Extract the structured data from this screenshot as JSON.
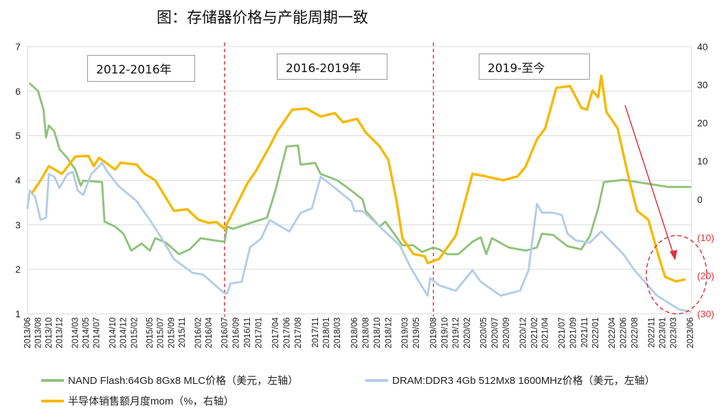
{
  "title": "图：存储器价格与产能周期一致",
  "chart_data": {
    "type": "line",
    "title": "图：存储器价格与产能周期一致",
    "x_ticks": [
      "2013/06",
      "2013/08",
      "2013/10",
      "2013/12",
      "2014/03",
      "2014/05",
      "2014/07",
      "2014/10",
      "2014/12",
      "2015/02",
      "2015/05",
      "2015/07",
      "2015/09",
      "2015/11",
      "2016/02",
      "2016/04",
      "2016/07",
      "2016/09",
      "2016/11",
      "2017/01",
      "2017/04",
      "2017/06",
      "2017/08",
      "2017/11",
      "2018/01",
      "2018/03",
      "2018/06",
      "2018/08",
      "2018/10",
      "2018/12",
      "2019/03",
      "2019/05",
      "2019/08",
      "2019/10",
      "2019/12",
      "2020/02",
      "2020/05",
      "2020/07",
      "2020/09",
      "2020/12",
      "2021/02",
      "2021/04",
      "2021/07",
      "2021/09",
      "2021/11",
      "2022/01",
      "2022/04",
      "2022/06",
      "2022/08",
      "2022/11",
      "2023/01",
      "2023/03",
      "2023/06"
    ],
    "y_left": {
      "ylim": [
        1,
        7
      ],
      "ticks": [
        "1",
        "2",
        "3",
        "4",
        "5",
        "6",
        "7"
      ]
    },
    "y_right": {
      "ylim": [
        -30,
        40
      ],
      "ticks": [
        {
          "v": 40,
          "label": "40"
        },
        {
          "v": 30,
          "label": "30"
        },
        {
          "v": 20,
          "label": "20"
        },
        {
          "v": 10,
          "label": "10"
        },
        {
          "v": 0,
          "label": "0"
        },
        {
          "v": -10,
          "label": "(10)"
        },
        {
          "v": -20,
          "label": "(20)"
        },
        {
          "v": -30,
          "label": "(30)"
        }
      ]
    },
    "grid": true,
    "legend_position": "bottom",
    "series": [
      {
        "name": "NAND Flash:64Gb 8Gx8 MLC价格（美元，左轴）",
        "axis": "left",
        "color": "#8fc37a",
        "points": [
          [
            "2013-06-15",
            6.17
          ],
          [
            "2013-08-01",
            6.0
          ],
          [
            "2013-09-01",
            5.58
          ],
          [
            "2013-09-15",
            4.96
          ],
          [
            "2013-10-01",
            5.23
          ],
          [
            "2013-11-01",
            5.1
          ],
          [
            "2013-12-01",
            4.7
          ],
          [
            "2014-01-15",
            4.5
          ],
          [
            "2014-03-01",
            4.24
          ],
          [
            "2014-04-01",
            3.88
          ],
          [
            "2014-04-15",
            3.99
          ],
          [
            "2014-08-01",
            3.96
          ],
          [
            "2014-08-15",
            3.07
          ],
          [
            "2014-10-15",
            2.96
          ],
          [
            "2014-12-01",
            2.8
          ],
          [
            "2015-01-15",
            2.42
          ],
          [
            "2015-03-15",
            2.58
          ],
          [
            "2015-05-01",
            2.42
          ],
          [
            "2015-06-01",
            2.7
          ],
          [
            "2015-08-01",
            2.6
          ],
          [
            "2015-10-15",
            2.34
          ],
          [
            "2015-12-15",
            2.45
          ],
          [
            "2016-02-15",
            2.7
          ],
          [
            "2016-05-01",
            2.65
          ],
          [
            "2016-07-01",
            2.62
          ],
          [
            "2016-07-15",
            2.96
          ],
          [
            "2016-08-15",
            2.91
          ],
          [
            "2016-12-01",
            3.06
          ],
          [
            "2017-02-15",
            3.16
          ],
          [
            "2017-04-01",
            3.77
          ],
          [
            "2017-06-01",
            4.76
          ],
          [
            "2017-08-01",
            4.78
          ],
          [
            "2017-08-15",
            4.35
          ],
          [
            "2017-11-01",
            4.39
          ],
          [
            "2017-12-01",
            4.14
          ],
          [
            "2018-03-01",
            4.0
          ],
          [
            "2018-05-15",
            3.77
          ],
          [
            "2018-07-15",
            3.57
          ],
          [
            "2018-08-01",
            3.31
          ],
          [
            "2018-10-15",
            2.96
          ],
          [
            "2018-11-15",
            3.07
          ],
          [
            "2019-02-15",
            2.54
          ],
          [
            "2019-04-15",
            2.54
          ],
          [
            "2019-06-01",
            2.39
          ],
          [
            "2019-08-01",
            2.49
          ],
          [
            "2019-09-01",
            2.45
          ],
          [
            "2019-10-15",
            2.34
          ],
          [
            "2019-12-15",
            2.34
          ],
          [
            "2020-03-01",
            2.62
          ],
          [
            "2020-04-15",
            2.72
          ],
          [
            "2020-05-15",
            2.34
          ],
          [
            "2020-06-15",
            2.7
          ],
          [
            "2020-09-15",
            2.49
          ],
          [
            "2020-12-15",
            2.42
          ],
          [
            "2021-02-15",
            2.49
          ],
          [
            "2021-03-15",
            2.8
          ],
          [
            "2021-05-15",
            2.77
          ],
          [
            "2021-08-01",
            2.52
          ],
          [
            "2021-10-15",
            2.45
          ],
          [
            "2021-12-01",
            2.75
          ],
          [
            "2022-01-15",
            3.37
          ],
          [
            "2022-02-15",
            3.96
          ],
          [
            "2022-06-01",
            4.01
          ],
          [
            "2022-10-01",
            3.93
          ],
          [
            "2023-02-01",
            3.85
          ],
          [
            "2023-06-01",
            3.85
          ]
        ]
      },
      {
        "name": "DRAM:DDR3 4Gb 512Mx8 1600MHz价格（美元，左轴）",
        "axis": "left",
        "color": "#b4cde6",
        "points": [
          [
            "2013-06-01",
            3.37
          ],
          [
            "2013-06-15",
            3.77
          ],
          [
            "2013-07-15",
            3.62
          ],
          [
            "2013-08-15",
            3.11
          ],
          [
            "2013-09-15",
            3.16
          ],
          [
            "2013-10-01",
            4.14
          ],
          [
            "2013-11-01",
            4.08
          ],
          [
            "2013-12-01",
            3.83
          ],
          [
            "2014-01-15",
            4.14
          ],
          [
            "2014-02-15",
            4.19
          ],
          [
            "2014-03-15",
            3.77
          ],
          [
            "2014-04-15",
            3.67
          ],
          [
            "2014-06-01",
            4.14
          ],
          [
            "2014-08-01",
            4.39
          ],
          [
            "2014-09-01",
            4.19
          ],
          [
            "2014-11-01",
            3.88
          ],
          [
            "2015-02-15",
            3.53
          ],
          [
            "2015-05-01",
            3.11
          ],
          [
            "2015-07-15",
            2.65
          ],
          [
            "2015-09-15",
            2.23
          ],
          [
            "2016-01-01",
            1.92
          ],
          [
            "2016-03-01",
            1.88
          ],
          [
            "2016-05-01",
            1.67
          ],
          [
            "2016-07-01",
            1.46
          ],
          [
            "2016-07-15",
            1.46
          ],
          [
            "2016-08-01",
            1.68
          ],
          [
            "2016-10-01",
            1.72
          ],
          [
            "2016-11-15",
            2.49
          ],
          [
            "2017-01-15",
            2.7
          ],
          [
            "2017-03-01",
            3.11
          ],
          [
            "2017-06-15",
            2.85
          ],
          [
            "2017-08-15",
            3.27
          ],
          [
            "2017-10-15",
            3.37
          ],
          [
            "2017-12-01",
            4.08
          ],
          [
            "2018-02-15",
            3.83
          ],
          [
            "2018-05-15",
            3.53
          ],
          [
            "2018-06-01",
            3.31
          ],
          [
            "2018-07-15",
            3.31
          ],
          [
            "2018-10-15",
            2.96
          ],
          [
            "2019-02-01",
            2.54
          ],
          [
            "2019-04-01",
            2.03
          ],
          [
            "2019-06-01",
            1.61
          ],
          [
            "2019-07-01",
            1.41
          ],
          [
            "2019-07-15",
            1.8
          ],
          [
            "2019-09-01",
            1.64
          ],
          [
            "2019-12-01",
            1.52
          ],
          [
            "2020-03-01",
            1.98
          ],
          [
            "2020-04-15",
            1.72
          ],
          [
            "2020-08-01",
            1.41
          ],
          [
            "2020-11-15",
            1.52
          ],
          [
            "2021-01-01",
            1.98
          ],
          [
            "2021-02-15",
            3.47
          ],
          [
            "2021-03-15",
            3.27
          ],
          [
            "2021-05-15",
            3.27
          ],
          [
            "2021-07-01",
            3.22
          ],
          [
            "2021-08-01",
            2.8
          ],
          [
            "2021-09-15",
            2.65
          ],
          [
            "2021-12-01",
            2.6
          ],
          [
            "2022-02-01",
            2.85
          ],
          [
            "2022-06-01",
            2.34
          ],
          [
            "2022-08-01",
            1.98
          ],
          [
            "2022-12-01",
            1.41
          ],
          [
            "2023-04-01",
            1.1
          ],
          [
            "2023-06-01",
            1.05
          ]
        ]
      },
      {
        "name": "半导体销售额月度mom（%，右轴）",
        "axis": "right",
        "color": "#f7b800",
        "points": [
          [
            "2013-07-01",
            1.9
          ],
          [
            "2013-08-15",
            5
          ],
          [
            "2013-10-01",
            8.7
          ],
          [
            "2013-12-15",
            6.7
          ],
          [
            "2014-03-01",
            11.2
          ],
          [
            "2014-05-15",
            11.4
          ],
          [
            "2014-06-15",
            8.7
          ],
          [
            "2014-07-15",
            10.9
          ],
          [
            "2014-10-15",
            7.8
          ],
          [
            "2014-11-15",
            9.6
          ],
          [
            "2015-02-15",
            9.1
          ],
          [
            "2015-04-01",
            6.7
          ],
          [
            "2015-06-01",
            5
          ],
          [
            "2015-09-15",
            -3
          ],
          [
            "2015-12-01",
            -2.6
          ],
          [
            "2016-02-01",
            -5.3
          ],
          [
            "2016-04-01",
            -6.2
          ],
          [
            "2016-05-15",
            -5.9
          ],
          [
            "2016-07-01",
            -7.7
          ],
          [
            "2016-11-01",
            4.2
          ],
          [
            "2016-12-15",
            7.3
          ],
          [
            "2017-03-01",
            13.9
          ],
          [
            "2017-04-15",
            18.1
          ],
          [
            "2017-07-01",
            23.5
          ],
          [
            "2017-09-15",
            23.8
          ],
          [
            "2017-12-01",
            21.7
          ],
          [
            "2018-02-15",
            22.6
          ],
          [
            "2018-04-01",
            20.2
          ],
          [
            "2018-06-15",
            21.1
          ],
          [
            "2018-08-01",
            17.5
          ],
          [
            "2018-10-15",
            13.9
          ],
          [
            "2018-12-01",
            10.3
          ],
          [
            "2019-01-15",
            -0.5
          ],
          [
            "2019-02-15",
            -10.2
          ],
          [
            "2019-04-15",
            -14.3
          ],
          [
            "2019-06-15",
            -14.9
          ],
          [
            "2019-07-01",
            -16.7
          ],
          [
            "2019-09-01",
            -15.6
          ],
          [
            "2019-12-01",
            -9.5
          ],
          [
            "2020-03-01",
            6.7
          ],
          [
            "2020-05-15",
            6
          ],
          [
            "2020-08-15",
            5
          ],
          [
            "2020-11-01",
            6
          ],
          [
            "2020-12-15",
            8.5
          ],
          [
            "2021-02-15",
            15.7
          ],
          [
            "2021-04-01",
            18.6
          ],
          [
            "2021-06-01",
            29.2
          ],
          [
            "2021-08-15",
            29.7
          ],
          [
            "2021-10-15",
            24
          ],
          [
            "2021-11-15",
            23.5
          ],
          [
            "2021-12-15",
            28.5
          ],
          [
            "2022-01-15",
            26.7
          ],
          [
            "2022-02-01",
            32.4
          ],
          [
            "2022-03-01",
            22.9
          ],
          [
            "2022-05-01",
            18.6
          ],
          [
            "2022-07-01",
            5.5
          ],
          [
            "2022-08-15",
            -3
          ],
          [
            "2022-10-15",
            -5.3
          ],
          [
            "2022-12-15",
            -15.6
          ],
          [
            "2023-01-15",
            -20.3
          ],
          [
            "2023-03-15",
            -21.5
          ],
          [
            "2023-05-01",
            -21
          ]
        ]
      }
    ],
    "annotations": {
      "period_labels": [
        "2012-2016年",
        "2016-2019年",
        "2019-至今"
      ],
      "divider_dates": [
        "2016-07-01",
        "2019-08-01"
      ],
      "annotation_color": "#e0303a"
    }
  }
}
